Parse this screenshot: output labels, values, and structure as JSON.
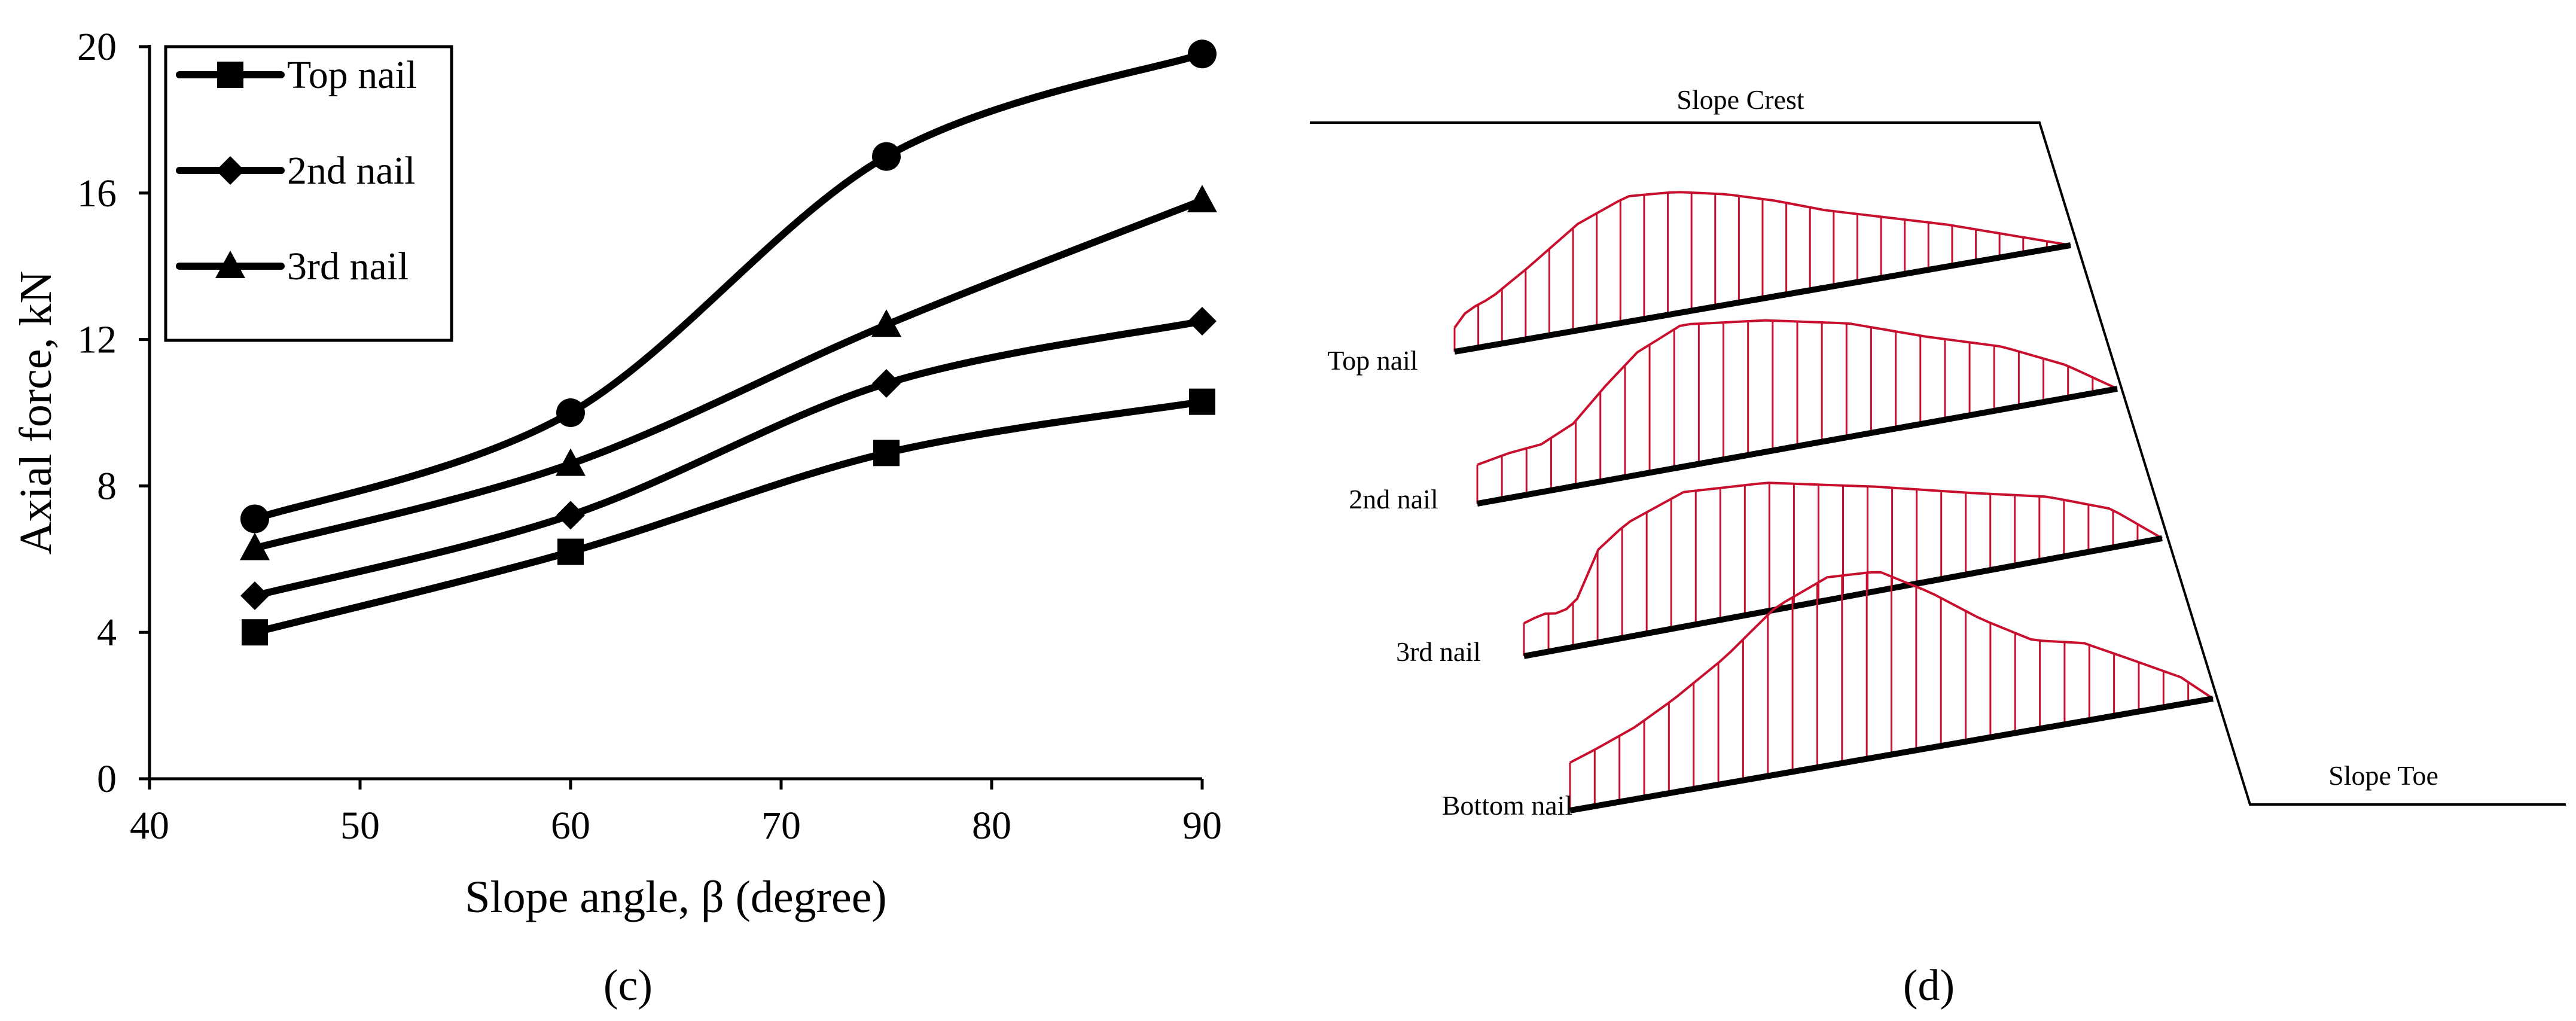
{
  "chart_data": {
    "type": "line",
    "title": "",
    "xlabel": "Slope angle, β (degree)",
    "ylabel": "Axial force, kN",
    "xlim": [
      40,
      90
    ],
    "ylim": [
      0,
      20
    ],
    "x_ticks": [
      "40",
      "50",
      "60",
      "70",
      "80",
      "90"
    ],
    "y_ticks": [
      "0",
      "4",
      "8",
      "12",
      "16",
      "20"
    ],
    "x": [
      45,
      60,
      75,
      90
    ],
    "series": [
      {
        "name": "Top nail",
        "marker": "square",
        "values": [
          4.0,
          6.2,
          8.9,
          10.3
        ]
      },
      {
        "name": "2nd nail",
        "marker": "diamond",
        "values": [
          5.0,
          7.2,
          10.8,
          12.5
        ]
      },
      {
        "name": "3rd nail",
        "marker": "triangle",
        "values": [
          6.3,
          8.6,
          12.4,
          15.8
        ]
      },
      {
        "name": "",
        "marker": "circle",
        "values": [
          7.1,
          10.0,
          17.0,
          19.8
        ]
      }
    ],
    "legend_position": "top-left",
    "panel_label": "(c)"
  },
  "diagram": {
    "crest_label": "Slope Crest",
    "toe_label": "Slope Toe",
    "nails": [
      {
        "label": "Top nail"
      },
      {
        "label": "2nd nail"
      },
      {
        "label": "3rd nail"
      },
      {
        "label": "Bottom nail"
      }
    ],
    "panel_label": "(d)",
    "colors": {
      "distribution": "#c8102e",
      "structure": "#000000"
    }
  }
}
